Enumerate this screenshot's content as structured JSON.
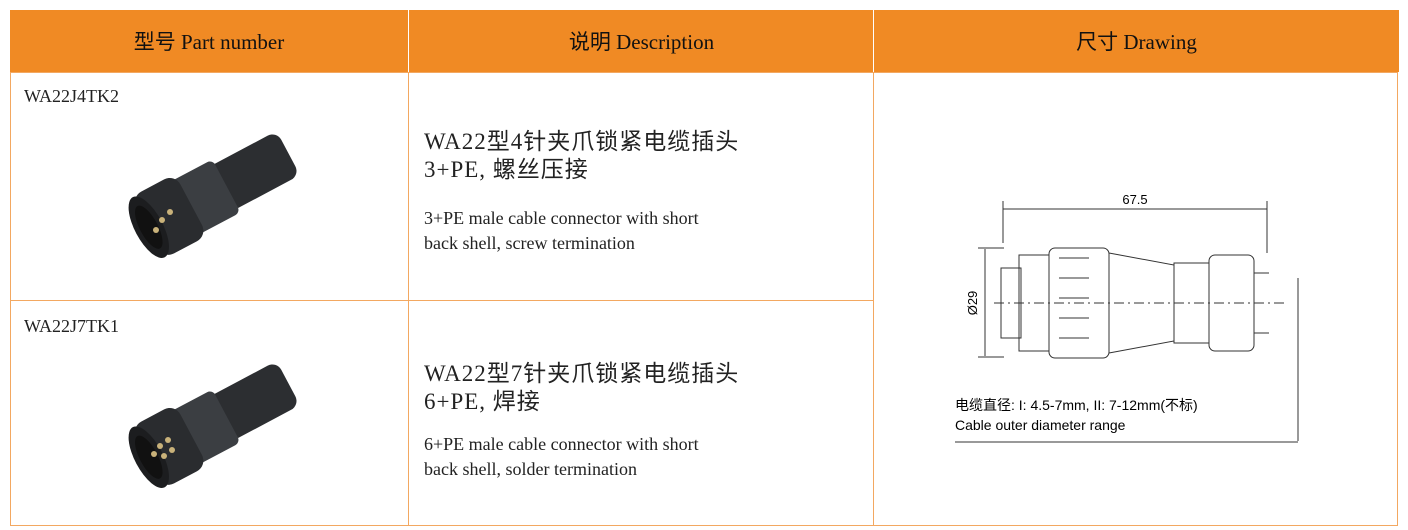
{
  "table": {
    "headers": [
      "型号 Part number",
      "说明 Description",
      "尺寸 Drawing"
    ],
    "rows": [
      {
        "part_number": "WA22J4TK2",
        "title_cn": [
          "WA22型4针夹爪锁紧电缆插头",
          "3+PE, 螺丝压接"
        ],
        "description": [
          "3+PE male cable connector with short",
          "back shell, screw termination"
        ]
      },
      {
        "part_number": "WA22J7TK1",
        "title_cn": [
          "WA22型7针夹爪锁紧电缆插头",
          "6+PE, 焊接"
        ],
        "description": [
          "6+PE male cable connector with short",
          "back shell, solder termination"
        ]
      }
    ]
  },
  "drawing": {
    "length": "67.5",
    "diameter": "Ø29",
    "note_cn": "电缆直径: I: 4.5-7mm, II: 7-12mm(不标)",
    "note_en": "Cable outer  diameter range"
  }
}
